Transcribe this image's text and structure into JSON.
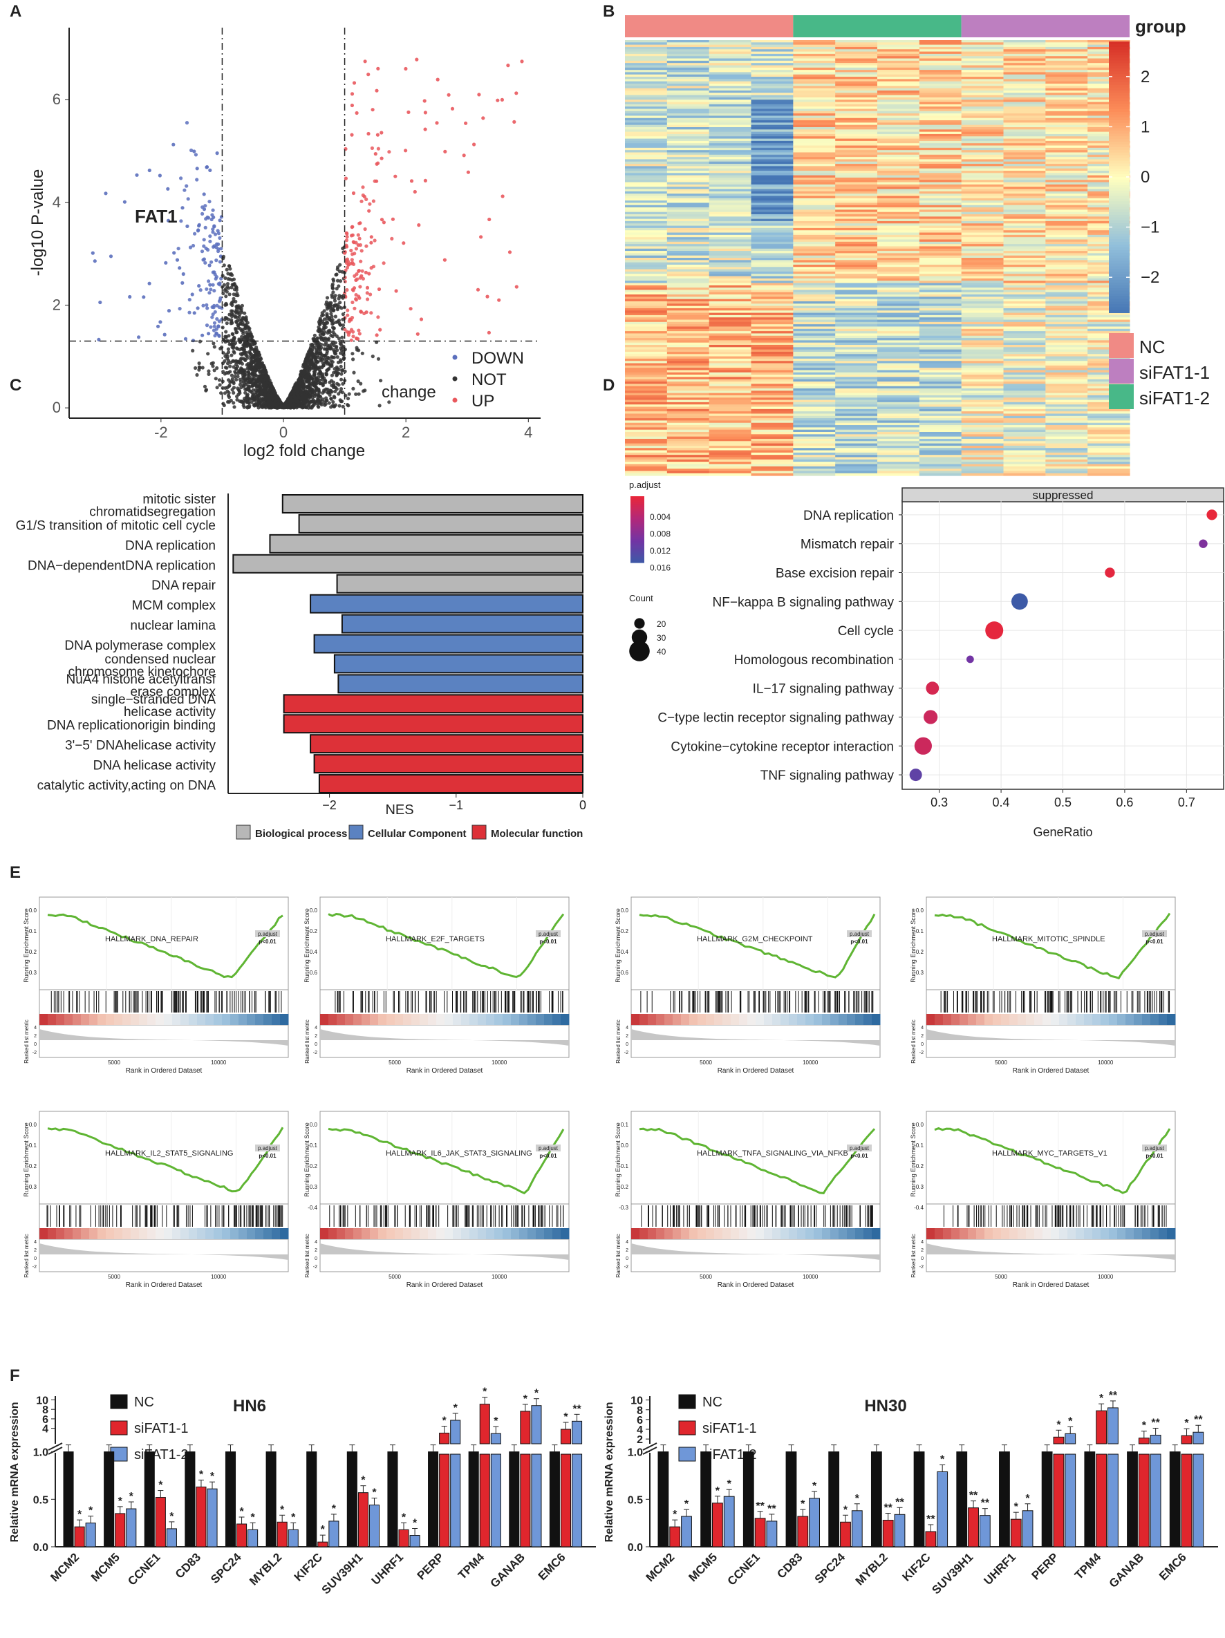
{
  "figure": {
    "panel_letters": [
      "A",
      "B",
      "C",
      "D",
      "E",
      "F"
    ]
  },
  "chart_data": [
    {
      "panel": "A",
      "type": "scatter",
      "title": "",
      "xlabel": "log2 fold change",
      "ylabel": "-log10 P-value",
      "xlim": [
        -3.5,
        4.2
      ],
      "ylim": [
        -0.2,
        7.4
      ],
      "xticks": [
        -2,
        0,
        2,
        4
      ],
      "yticks": [
        0,
        2,
        4,
        6
      ],
      "thresholds": {
        "x": [
          -1,
          1
        ],
        "y": 1.3
      },
      "annotation": "FAT1",
      "legend_title": "change",
      "series": [
        {
          "name": "DOWN",
          "color": "#5b6fbd"
        },
        {
          "name": "NOT",
          "color": "#333333"
        },
        {
          "name": "UP",
          "color": "#e9585d"
        }
      ]
    },
    {
      "panel": "B",
      "type": "heatmap",
      "annotation_label": "group",
      "color_scale": {
        "min": -2.7,
        "max": 2.7,
        "ticks": [
          2,
          1,
          0,
          -1,
          -2
        ],
        "colors": [
          "#4575b4",
          "#91bfdb",
          "#ffffbf",
          "#fc8d59",
          "#d73027"
        ]
      },
      "group_order": [
        {
          "name": "NC",
          "color": "#f08a85",
          "n": 4
        },
        {
          "name": "siFAT1-2",
          "color": "#48b888",
          "n": 4
        },
        {
          "name": "siFAT1-1",
          "color": "#bd7fc0",
          "n": 4
        }
      ],
      "legend": [
        {
          "name": "NC",
          "color": "#f08a85"
        },
        {
          "name": "siFAT1-1",
          "color": "#bd7fc0"
        },
        {
          "name": "siFAT1-2",
          "color": "#48b888"
        }
      ]
    },
    {
      "panel": "C",
      "type": "bar",
      "xlabel": "NES",
      "xlim": [
        -2.8,
        0
      ],
      "xticks": [
        -2,
        -1,
        0
      ],
      "categories": [
        "mitotic sister chromatidsegregation",
        "G1/S transition of mitotic cell cycle",
        "DNA replication",
        "DNA−dependentDNA replication",
        "DNA repair",
        "MCM complex",
        "nuclear lamina",
        "DNA polymerase complex",
        "condensed nuclear chromosome kinetochore",
        "NuA4 histone acetyltransf erase complex",
        "single−stranded DNA helicase activity",
        "DNA replicationorigin binding",
        "3'−5' DNAhelicase activity",
        "DNA helicase activity",
        "catalytic activity,acting on DNA"
      ],
      "label_lines": [
        [
          "mitotic sister",
          "chromatidsegregation"
        ],
        [
          "G1/S transition of mitotic cell cycle"
        ],
        [
          "DNA replication"
        ],
        [
          "DNA−dependentDNA replication"
        ],
        [
          "DNA repair"
        ],
        [
          "MCM complex"
        ],
        [
          "nuclear lamina"
        ],
        [
          "DNA polymerase complex"
        ],
        [
          "condensed nuclear",
          "chromosome kinetochore"
        ],
        [
          "NuA4 histone acetyltransf",
          "erase complex"
        ],
        [
          "single−stranded DNA",
          "helicase activity"
        ],
        [
          "DNA replicationorigin binding"
        ],
        [
          "3'−5' DNAhelicase activity"
        ],
        [
          "DNA helicase activity"
        ],
        [
          "catalytic activity,acting on DNA"
        ]
      ],
      "values": [
        -2.37,
        -2.24,
        -2.47,
        -2.76,
        -1.94,
        -2.15,
        -1.9,
        -2.12,
        -1.96,
        -1.93,
        -2.36,
        -2.36,
        -2.15,
        -2.12,
        -2.08
      ],
      "groups": [
        0,
        0,
        0,
        0,
        0,
        1,
        1,
        1,
        1,
        1,
        2,
        2,
        2,
        2,
        2
      ],
      "legend": [
        {
          "name": "Biological process",
          "color": "#b7b7b7"
        },
        {
          "name": "Cellular Component",
          "color": "#5b82c1"
        },
        {
          "name": "Molecular function",
          "color": "#dd3138"
        }
      ]
    },
    {
      "panel": "D",
      "type": "scatter",
      "facet": "suppressed",
      "xlabel": "GeneRatio",
      "xlim": [
        0.24,
        0.76
      ],
      "xticks": [
        0.3,
        0.4,
        0.5,
        0.6,
        0.7
      ],
      "categories": [
        "DNA replication",
        "Mismatch repair",
        "Base excision repair",
        "NF−kappa B signaling pathway",
        "Cell cycle",
        "Homologous recombination",
        "IL−17 signaling pathway",
        "C−type lectin receptor signaling pathway",
        "Cytokine−cytokine receptor interaction",
        "TNF signaling pathway"
      ],
      "gene_ratio": [
        0.741,
        0.727,
        0.576,
        0.43,
        0.389,
        0.35,
        0.289,
        0.286,
        0.274,
        0.262
      ],
      "count": [
        20,
        16,
        19,
        32,
        35,
        14,
        25,
        27,
        34,
        24
      ],
      "p_adjust": [
        0.0001,
        0.01,
        0.0005,
        0.0165,
        0.0004,
        0.011,
        0.002,
        0.003,
        0.003,
        0.013
      ],
      "color_legend": {
        "title": "p.adjust",
        "ticks": [
          "0.004",
          "0.008",
          "0.012",
          "0.016"
        ]
      },
      "size_legend": {
        "title": "Count",
        "values": [
          20,
          30,
          40
        ]
      }
    },
    {
      "panel": "E",
      "type": "line",
      "ylabel": "Running Enrichment Score",
      "ylabel2": "Ranked list metric",
      "xlabel": "Rank in Ordered Dataset",
      "xticks": [
        5000,
        10000
      ],
      "badge": "p.adjust",
      "pvalue": "p<0.01",
      "metric_ticks": [
        "4",
        "2",
        "0",
        "-2"
      ],
      "plots": [
        {
          "name": "HALLMARK_DNA_REPAIR",
          "yticks": [
            "0.0",
            "-0.1",
            "-0.2",
            "-0.3"
          ]
        },
        {
          "name": "HALLMARK_E2F_TARGETS",
          "yticks": [
            "0.0",
            "-0.2",
            "-0.4",
            "-0.6"
          ]
        },
        {
          "name": "HALLMARK_G2M_CHECKPOINT",
          "yticks": [
            "0.0",
            "-0.2",
            "-0.4",
            "-0.6"
          ]
        },
        {
          "name": "HALLMARK_MITOTIC_SPINDLE",
          "yticks": [
            "0.0",
            "-0.1",
            "-0.2",
            "-0.3"
          ]
        },
        {
          "name": "HALLMARK_IL2_STAT5_SIGNALING",
          "yticks": [
            "0.0",
            "-0.1",
            "-0.2",
            "-0.3"
          ]
        },
        {
          "name": "HALLMARK_IL6_JAK_STAT3_SIGNALING",
          "yticks": [
            "0.0",
            "-0.1",
            "-0.2",
            "-0.3",
            "-0.4"
          ]
        },
        {
          "name": "HALLMARK_TNFA_SIGNALING_VIA_NFKB",
          "yticks": [
            "0.1",
            "0.0",
            "-0.1",
            "-0.2",
            "-0.3"
          ]
        },
        {
          "name": "HALLMARK_MYC_TARGETS_V1",
          "yticks": [
            "0.0",
            "-0.1",
            "-0.2",
            "-0.3",
            "-0.4"
          ]
        }
      ]
    },
    {
      "panel": "F",
      "type": "bar",
      "ylabel": "Relative mRNA expression",
      "categories": [
        "MCM2",
        "MCM5",
        "CCNE1",
        "CD83",
        "SPC24",
        "MYBL2",
        "KIF2C",
        "SUV39H1",
        "UHRF1",
        "PERP",
        "TPM4",
        "GANAB",
        "EMC6"
      ],
      "series_names": [
        "NC",
        "siFAT1-1",
        "siFAT1-2"
      ],
      "series_colors": [
        "#111111",
        "#e0262d",
        "#6f97d8"
      ],
      "lower_yticks": [
        "0.0",
        "0.5",
        "1.0"
      ],
      "charts": [
        {
          "title": "HN6",
          "upper_yticks": [
            "4",
            "6",
            "8",
            "10"
          ],
          "NC": [
            1.0,
            1.0,
            1.0,
            1.0,
            1.0,
            1.0,
            1.0,
            1.0,
            1.0,
            1.0,
            1.0,
            1.0,
            1.0
          ],
          "siFAT1-1": [
            0.21,
            0.35,
            0.52,
            0.63,
            0.24,
            0.26,
            0.05,
            0.57,
            0.18,
            3.0,
            9.1,
            7.6,
            3.8
          ],
          "siFAT1-2": [
            0.25,
            0.4,
            0.19,
            0.61,
            0.18,
            0.18,
            0.27,
            0.44,
            0.12,
            5.7,
            2.9,
            8.8,
            5.5
          ],
          "sig1": [
            "*",
            "*",
            "*",
            "*",
            "*",
            "*",
            "*",
            "*",
            "*",
            "*",
            "*",
            "*",
            "*"
          ],
          "sig2": [
            "*",
            "*",
            "*",
            "*",
            "*",
            "*",
            "*",
            "*",
            "*",
            "*",
            "*",
            "*",
            "**"
          ]
        },
        {
          "title": "HN30",
          "upper_yticks": [
            "2",
            "4",
            "6",
            "8",
            "10"
          ],
          "NC": [
            1.0,
            1.0,
            1.0,
            1.0,
            1.0,
            1.0,
            1.0,
            1.0,
            1.0,
            1.0,
            1.0,
            1.0,
            1.0
          ],
          "siFAT1-1": [
            0.21,
            0.46,
            0.3,
            0.32,
            0.26,
            0.28,
            0.16,
            0.41,
            0.29,
            2.4,
            7.8,
            2.2,
            2.7
          ],
          "siFAT1-2": [
            0.32,
            0.53,
            0.27,
            0.51,
            0.38,
            0.34,
            0.79,
            0.33,
            0.38,
            3.1,
            8.4,
            2.8,
            3.4
          ],
          "sig1": [
            "*",
            "*",
            "**",
            "*",
            "*",
            "**",
            "**",
            "**",
            "*",
            "*",
            "*",
            "*",
            "*"
          ],
          "sig2": [
            "*",
            "*",
            "**",
            "*",
            "*",
            "**",
            "*",
            "**",
            "*",
            "*",
            "**",
            "**",
            "**"
          ]
        }
      ]
    }
  ]
}
